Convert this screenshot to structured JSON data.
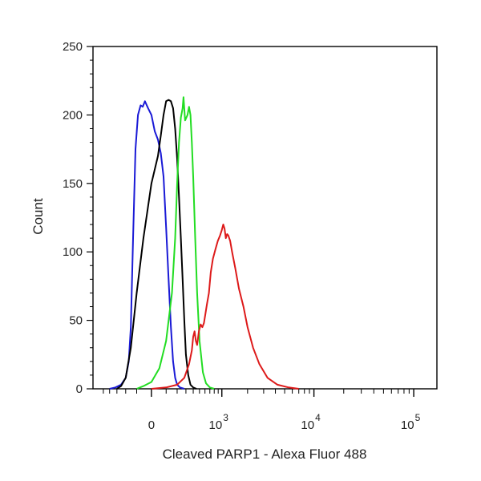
{
  "chart_data": {
    "type": "line",
    "title": "",
    "xlabel": "Cleaved PARP1 - Alexa Fluor 488",
    "ylabel": "Count",
    "x_scale": "logicle",
    "ylim": [
      0,
      250
    ],
    "y_ticks": [
      {
        "value": 0,
        "label": "0"
      },
      {
        "value": 50,
        "label": "50"
      },
      {
        "value": 100,
        "label": "100"
      },
      {
        "value": 150,
        "label": "150"
      },
      {
        "value": 200,
        "label": "200"
      },
      {
        "value": 250,
        "label": "250"
      }
    ],
    "x_ticks": [
      {
        "label": "0",
        "exp": ""
      },
      {
        "label": "10",
        "exp": "3"
      },
      {
        "label": "10",
        "exp": "4"
      },
      {
        "label": "10",
        "exp": "5"
      }
    ],
    "grid": false,
    "legend": "none",
    "series": [
      {
        "color": "#1a1ad6",
        "points": [
          [
            -400,
            0
          ],
          [
            -320,
            1
          ],
          [
            -250,
            3
          ],
          [
            -200,
            8
          ],
          [
            -170,
            20
          ],
          [
            -150,
            45
          ],
          [
            -130,
            110
          ],
          [
            -110,
            175
          ],
          [
            -90,
            200
          ],
          [
            -70,
            207
          ],
          [
            -55,
            206
          ],
          [
            -40,
            210
          ],
          [
            -20,
            205
          ],
          [
            0,
            200
          ],
          [
            20,
            188
          ],
          [
            40,
            182
          ],
          [
            60,
            172
          ],
          [
            80,
            155
          ],
          [
            100,
            118
          ],
          [
            120,
            80
          ],
          [
            140,
            45
          ],
          [
            160,
            20
          ],
          [
            180,
            8
          ],
          [
            200,
            3
          ],
          [
            230,
            1
          ],
          [
            280,
            0
          ]
        ]
      },
      {
        "color": "#000000",
        "points": [
          [
            -300,
            0
          ],
          [
            -250,
            2
          ],
          [
            -200,
            8
          ],
          [
            -150,
            30
          ],
          [
            -100,
            70
          ],
          [
            -50,
            110
          ],
          [
            0,
            150
          ],
          [
            40,
            170
          ],
          [
            60,
            185
          ],
          [
            80,
            200
          ],
          [
            100,
            210
          ],
          [
            120,
            211
          ],
          [
            140,
            210
          ],
          [
            160,
            205
          ],
          [
            180,
            190
          ],
          [
            200,
            168
          ],
          [
            220,
            140
          ],
          [
            240,
            110
          ],
          [
            260,
            80
          ],
          [
            280,
            50
          ],
          [
            300,
            25
          ],
          [
            330,
            10
          ],
          [
            360,
            3
          ],
          [
            400,
            1
          ],
          [
            450,
            0
          ]
        ]
      },
      {
        "color": "#22dd22",
        "points": [
          [
            -100,
            0
          ],
          [
            -50,
            2
          ],
          [
            0,
            5
          ],
          [
            50,
            15
          ],
          [
            100,
            35
          ],
          [
            150,
            70
          ],
          [
            180,
            110
          ],
          [
            200,
            150
          ],
          [
            220,
            180
          ],
          [
            240,
            198
          ],
          [
            260,
            205
          ],
          [
            270,
            213
          ],
          [
            290,
            196
          ],
          [
            320,
            200
          ],
          [
            340,
            206
          ],
          [
            360,
            200
          ],
          [
            380,
            180
          ],
          [
            400,
            155
          ],
          [
            430,
            110
          ],
          [
            460,
            70
          ],
          [
            500,
            35
          ],
          [
            560,
            12
          ],
          [
            620,
            4
          ],
          [
            700,
            1
          ],
          [
            800,
            0
          ]
        ]
      },
      {
        "color": "#dd1a1a",
        "points": [
          [
            0,
            0
          ],
          [
            100,
            1
          ],
          [
            200,
            3
          ],
          [
            280,
            8
          ],
          [
            340,
            18
          ],
          [
            380,
            28
          ],
          [
            400,
            38
          ],
          [
            420,
            42
          ],
          [
            440,
            35
          ],
          [
            460,
            32
          ],
          [
            490,
            42
          ],
          [
            520,
            47
          ],
          [
            550,
            45
          ],
          [
            580,
            48
          ],
          [
            610,
            55
          ],
          [
            640,
            62
          ],
          [
            680,
            70
          ],
          [
            720,
            85
          ],
          [
            770,
            95
          ],
          [
            830,
            102
          ],
          [
            890,
            108
          ],
          [
            950,
            112
          ],
          [
            1000,
            116
          ],
          [
            1040,
            120
          ],
          [
            1080,
            117
          ],
          [
            1120,
            110
          ],
          [
            1160,
            113
          ],
          [
            1200,
            112
          ],
          [
            1260,
            108
          ],
          [
            1330,
            100
          ],
          [
            1450,
            88
          ],
          [
            1600,
            73
          ],
          [
            1800,
            60
          ],
          [
            2000,
            45
          ],
          [
            2300,
            30
          ],
          [
            2700,
            18
          ],
          [
            3300,
            8
          ],
          [
            4200,
            3
          ],
          [
            5500,
            1
          ],
          [
            7000,
            0
          ]
        ]
      }
    ]
  }
}
